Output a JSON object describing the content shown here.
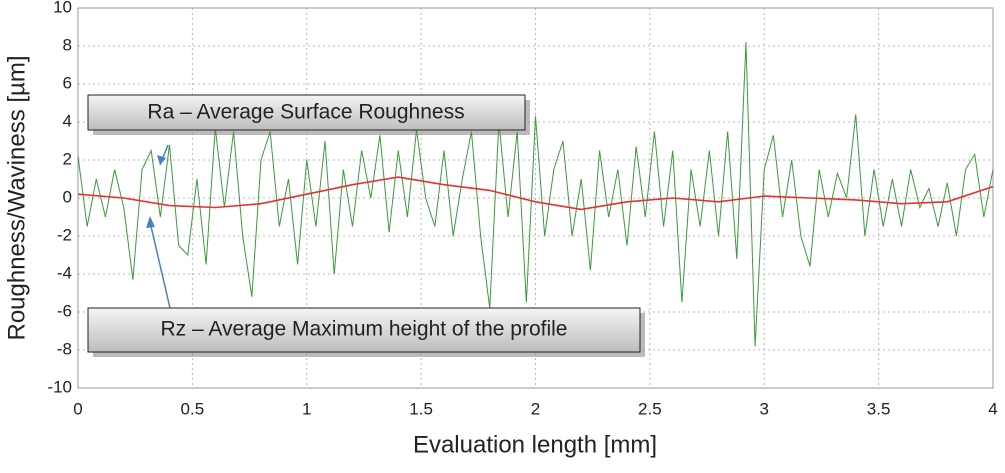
{
  "chart_data": {
    "type": "line",
    "x_label": "Evaluation length [mm]",
    "y_label": "Roughness/Waviness [µm]",
    "xlim": [
      0,
      4
    ],
    "xticks": [
      0,
      0.5,
      1,
      1.5,
      2,
      2.5,
      3,
      3.5,
      4
    ],
    "ylim": [
      -10,
      10
    ],
    "yticks": [
      -10,
      -8,
      -6,
      -4,
      -2,
      0,
      2,
      4,
      6,
      8,
      10
    ],
    "grid": true,
    "annotations": [
      "Ra – Average Surface Roughness",
      "Rz – Average Maximum height of the profile"
    ],
    "series": [
      {
        "color": "#3c9a3c",
        "x": [
          0,
          0.04,
          0.08,
          0.12,
          0.16,
          0.2,
          0.24,
          0.28,
          0.32,
          0.36,
          0.4,
          0.44,
          0.48,
          0.52,
          0.56,
          0.6,
          0.64,
          0.68,
          0.72,
          0.76,
          0.8,
          0.84,
          0.88,
          0.92,
          0.96,
          1,
          1.04,
          1.08,
          1.12,
          1.16,
          1.2,
          1.24,
          1.28,
          1.32,
          1.36,
          1.4,
          1.44,
          1.48,
          1.52,
          1.56,
          1.6,
          1.64,
          1.68,
          1.72,
          1.76,
          1.8,
          1.84,
          1.88,
          1.92,
          1.96,
          2,
          2.04,
          2.08,
          2.12,
          2.16,
          2.2,
          2.24,
          2.28,
          2.32,
          2.36,
          2.4,
          2.44,
          2.48,
          2.52,
          2.56,
          2.6,
          2.64,
          2.68,
          2.72,
          2.76,
          2.8,
          2.84,
          2.88,
          2.92,
          2.96,
          3,
          3.04,
          3.08,
          3.12,
          3.16,
          3.2,
          3.24,
          3.28,
          3.32,
          3.36,
          3.4,
          3.44,
          3.48,
          3.52,
          3.56,
          3.6,
          3.64,
          3.68,
          3.72,
          3.76,
          3.8,
          3.84,
          3.88,
          3.92,
          3.96,
          4
        ],
        "values": [
          2.2,
          -1.5,
          1,
          -1,
          1.5,
          -0.5,
          -4.3,
          1.5,
          2.5,
          -1,
          2.8,
          -2.5,
          -3,
          1,
          -3.5,
          3.7,
          -0.5,
          3.5,
          -2,
          -5.2,
          2,
          3.5,
          -1.5,
          1,
          -3.5,
          2,
          -1.5,
          3,
          -4,
          1.5,
          -1.5,
          2.5,
          0,
          3.3,
          -1.8,
          2.5,
          -1,
          3.6,
          0,
          -1.5,
          2.5,
          -2,
          1,
          3.5,
          -2,
          -5.8,
          4,
          -1,
          3.5,
          -5.5,
          4.3,
          -2,
          1.5,
          3,
          -2,
          1,
          -3.8,
          2.5,
          -1,
          1.5,
          -2.5,
          2.7,
          -1,
          3.5,
          -1.5,
          2.5,
          -5.5,
          1.5,
          -1.5,
          2.5,
          -2,
          3.5,
          -3.2,
          8.2,
          -7.8,
          1.5,
          3.3,
          -1,
          2,
          -2,
          -3.6,
          1.5,
          -1,
          1.3,
          0,
          4.4,
          -2,
          1.5,
          -1.5,
          1,
          -1.5,
          1.5,
          -0.5,
          0.5,
          -1.5,
          0.8,
          -2,
          1.5,
          2.3,
          -1,
          1.5
        ]
      },
      {
        "color": "#e83030",
        "x": [
          0,
          0.2,
          0.4,
          0.6,
          0.8,
          1,
          1.2,
          1.4,
          1.6,
          1.8,
          2,
          2.2,
          2.4,
          2.6,
          2.8,
          3,
          3.2,
          3.4,
          3.6,
          3.8,
          4
        ],
        "values": [
          0.2,
          0,
          -0.4,
          -0.5,
          -0.3,
          0.2,
          0.7,
          1.1,
          0.7,
          0.4,
          -0.2,
          -0.6,
          -0.2,
          0,
          -0.2,
          0.1,
          0,
          -0.1,
          -0.3,
          -0.2,
          0.6
        ]
      }
    ]
  }
}
